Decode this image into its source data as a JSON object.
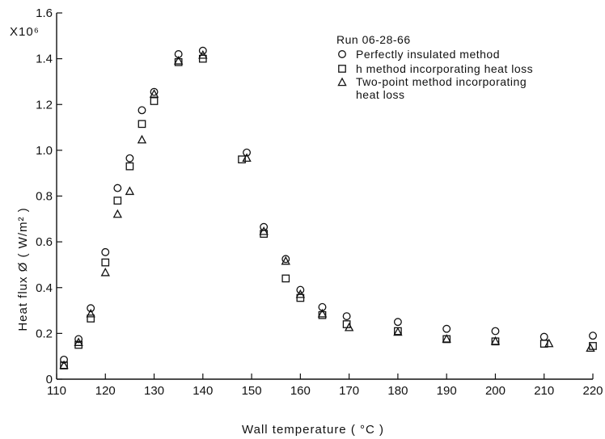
{
  "chart_data": {
    "type": "scatter",
    "xlabel": "Wall temperature ( °C )",
    "ylabel": "Heat flux Ø ( W/m² )",
    "y_multiplier": "X10⁶",
    "xlim": [
      110,
      220
    ],
    "ylim": [
      0,
      1.6
    ],
    "x_ticks": [
      110,
      120,
      130,
      140,
      150,
      160,
      170,
      180,
      190,
      200,
      210,
      220
    ],
    "y_ticks": [
      0,
      0.2,
      0.4,
      0.6,
      0.8,
      1.0,
      1.2,
      1.4,
      1.6
    ],
    "y_tick_labels": [
      "0",
      "0.2",
      "0.4",
      "0.6",
      "0.8",
      "1.0",
      "1.2",
      "1.4",
      "1.6"
    ],
    "grid": false,
    "legend_title": "Run   06-28-66",
    "legend_position": "top-right",
    "series": [
      {
        "name": "Perfectly insulated method",
        "marker": "circle",
        "points": [
          [
            111.5,
            0.085
          ],
          [
            114.5,
            0.175
          ],
          [
            117,
            0.31
          ],
          [
            120,
            0.555
          ],
          [
            122.5,
            0.835
          ],
          [
            125,
            0.965
          ],
          [
            127.5,
            1.175
          ],
          [
            130,
            1.255
          ],
          [
            135,
            1.42
          ],
          [
            140,
            1.435
          ],
          [
            149,
            0.99
          ],
          [
            152.5,
            0.665
          ],
          [
            157,
            0.525
          ],
          [
            160,
            0.39
          ],
          [
            164.5,
            0.315
          ],
          [
            169.5,
            0.275
          ],
          [
            180,
            0.25
          ],
          [
            190,
            0.22
          ],
          [
            200,
            0.21
          ],
          [
            210,
            0.185
          ],
          [
            220,
            0.19
          ]
        ]
      },
      {
        "name": "h method incorporating heat loss",
        "marker": "square",
        "points": [
          [
            111.5,
            0.06
          ],
          [
            114.5,
            0.15
          ],
          [
            117,
            0.265
          ],
          [
            120,
            0.51
          ],
          [
            122.5,
            0.78
          ],
          [
            125,
            0.93
          ],
          [
            127.5,
            1.115
          ],
          [
            130,
            1.215
          ],
          [
            135,
            1.385
          ],
          [
            140,
            1.4
          ],
          [
            148,
            0.96
          ],
          [
            152.5,
            0.635
          ],
          [
            157,
            0.44
          ],
          [
            160,
            0.355
          ],
          [
            164.5,
            0.28
          ],
          [
            169.5,
            0.24
          ],
          [
            180,
            0.21
          ],
          [
            190,
            0.175
          ],
          [
            200,
            0.165
          ],
          [
            210,
            0.155
          ],
          [
            220,
            0.145
          ]
        ]
      },
      {
        "name": "Two-point method incorporating heat loss",
        "marker": "triangle",
        "points": [
          [
            111.5,
            0.06
          ],
          [
            114.5,
            0.16
          ],
          [
            117,
            0.285
          ],
          [
            120,
            0.465
          ],
          [
            122.5,
            0.72
          ],
          [
            125,
            0.82
          ],
          [
            127.5,
            1.045
          ],
          [
            130,
            1.245
          ],
          [
            135,
            1.39
          ],
          [
            140,
            1.415
          ],
          [
            149,
            0.965
          ],
          [
            152.5,
            0.645
          ],
          [
            157,
            0.515
          ],
          [
            160,
            0.37
          ],
          [
            164.5,
            0.285
          ],
          [
            170,
            0.225
          ],
          [
            180,
            0.205
          ],
          [
            190,
            0.175
          ],
          [
            200,
            0.165
          ],
          [
            211,
            0.155
          ],
          [
            219.5,
            0.135
          ]
        ]
      }
    ]
  }
}
